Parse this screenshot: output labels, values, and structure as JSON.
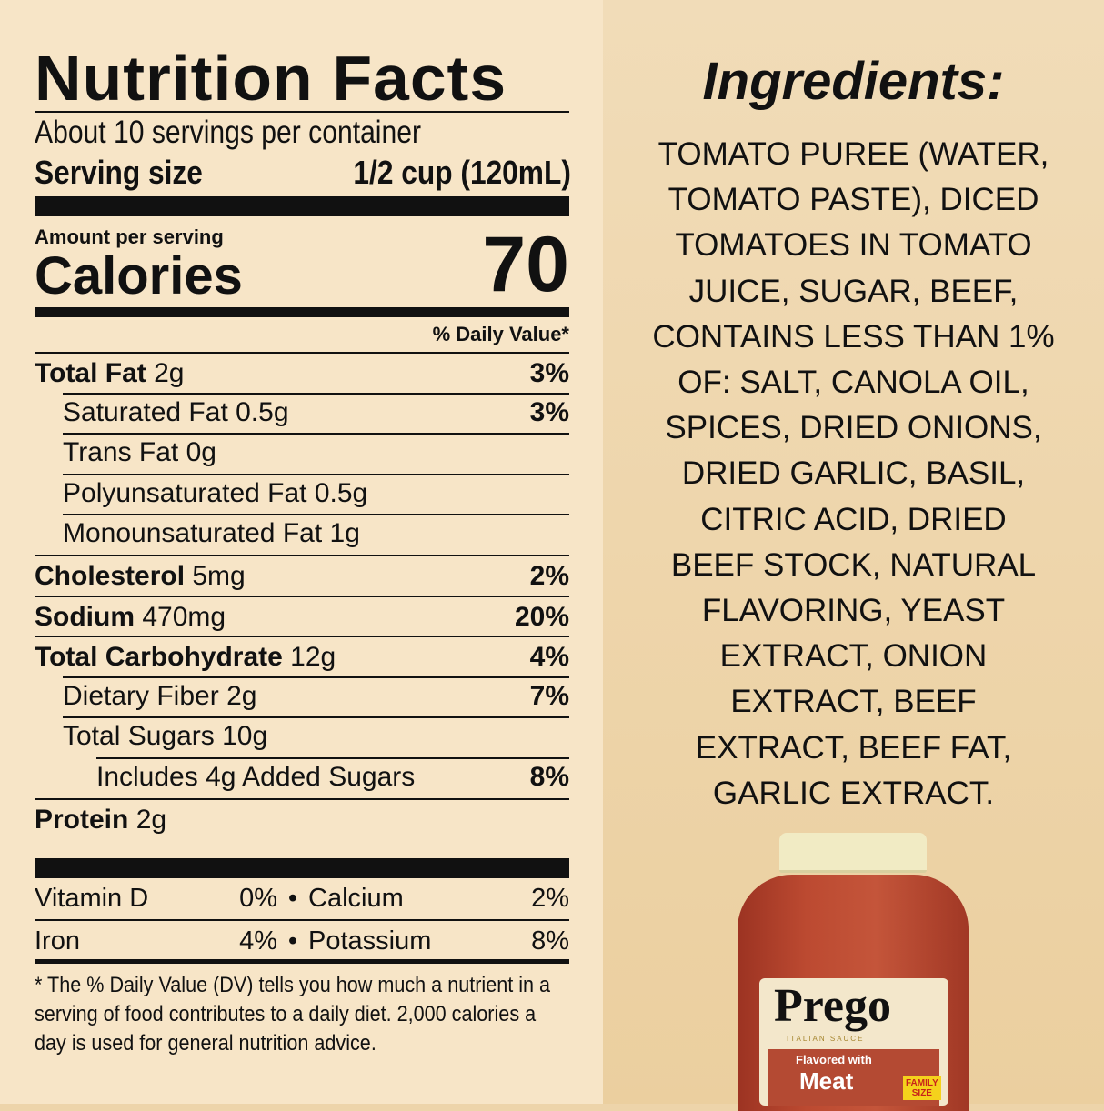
{
  "nutrition": {
    "title": "Nutrition Facts",
    "servings": "About 10 servings per container",
    "serving_size_label": "Serving size",
    "serving_size_value": "1/2 cup (120mL)",
    "amount_per_serving": "Amount per serving",
    "calories_label": "Calories",
    "calories_value": "70",
    "dv_header": "% Daily Value*",
    "rows": [
      {
        "name": "Total Fat",
        "amount": "2g",
        "dv": "3%",
        "bold": true,
        "indent": 0
      },
      {
        "name": "Saturated Fat",
        "amount": "0.5g",
        "dv": "3%",
        "bold": false,
        "indent": 1
      },
      {
        "name": "Trans Fat",
        "amount": "0g",
        "dv": "",
        "bold": false,
        "indent": 1
      },
      {
        "name": "Polyunsaturated Fat",
        "amount": "0.5g",
        "dv": "",
        "bold": false,
        "indent": 1
      },
      {
        "name": "Monounsaturated Fat",
        "amount": "1g",
        "dv": "",
        "bold": false,
        "indent": 1
      },
      {
        "name": "Cholesterol",
        "amount": "5mg",
        "dv": "2%",
        "bold": true,
        "indent": 0
      },
      {
        "name": "Sodium",
        "amount": "470mg",
        "dv": "20%",
        "bold": true,
        "indent": 0
      },
      {
        "name": "Total Carbohydrate",
        "amount": "12g",
        "dv": "4%",
        "bold": true,
        "indent": 0
      },
      {
        "name": "Dietary Fiber",
        "amount": "2g",
        "dv": "7%",
        "bold": false,
        "indent": 1
      },
      {
        "name": "Total Sugars",
        "amount": "10g",
        "dv": "",
        "bold": false,
        "indent": 1
      },
      {
        "name": "Includes 4g Added Sugars",
        "amount": "",
        "dv": "8%",
        "bold": false,
        "indent": 2
      },
      {
        "name": "Protein",
        "amount": "2g",
        "dv": "",
        "bold": true,
        "indent": 0
      }
    ],
    "vitamins": [
      {
        "a_name": "Vitamin D",
        "a_dv": "0%",
        "b_name": "Calcium",
        "b_dv": "2%"
      },
      {
        "a_name": "Iron",
        "a_dv": "4%",
        "b_name": "Potassium",
        "b_dv": "8%"
      }
    ],
    "footnote": "* The % Daily Value (DV) tells you how much a nutrient in a serving of food contributes to a daily diet. 2,000 calories a day is used for general nutrition advice."
  },
  "ingredients": {
    "title": "Ingredients:",
    "lines": [
      "TOMATO PUREE (WATER,",
      "TOMATO PASTE), DICED",
      "TOMATOES IN TOMATO",
      "JUICE, SUGAR, BEEF,",
      "CONTAINS LESS THAN 1%",
      "OF: SALT, CANOLA OIL,",
      "SPICES, DRIED ONIONS,",
      "DRIED GARLIC, BASIL,",
      "CITRIC ACID, DRIED",
      "BEEF STOCK, NATURAL",
      "FLAVORING, YEAST",
      "EXTRACT, ONION",
      "EXTRACT, BEEF",
      "EXTRACT, BEEF FAT,",
      "GARLIC EXTRACT."
    ]
  },
  "jar": {
    "brand": "Prego",
    "subtitle": "ITALIAN SAUCE",
    "flavor_line1": "Flavored with",
    "flavor_line2": "Meat",
    "badge_line1": "FAMILY",
    "badge_line2": "SIZE"
  },
  "colors": {
    "left_bg": "#f7e5c7",
    "right_bg": "#ecd3a8",
    "sauce": "#b3432c",
    "cap": "#f1ebc4",
    "badge": "#f5d21c"
  }
}
